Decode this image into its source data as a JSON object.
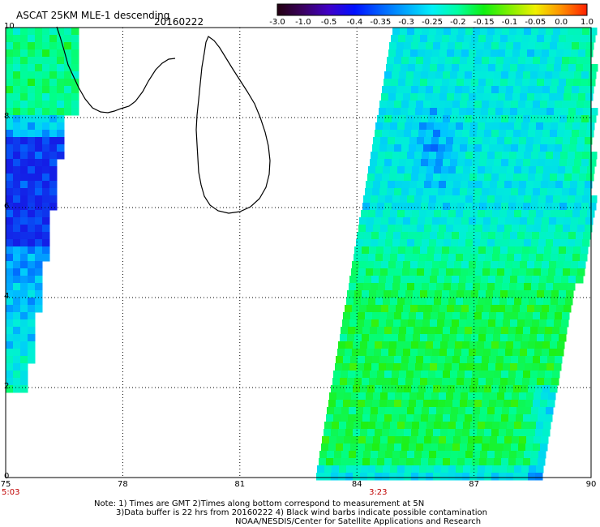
{
  "header": {
    "title": "ASCAT 25KM MLE-1 descending",
    "date": "20160222"
  },
  "colorbar": {
    "labels": [
      "-3.0",
      "-1.0",
      "-0.5",
      "-0.4",
      "-0.35",
      "-0.3",
      "-0.25",
      "-0.2",
      "-0.15",
      "-0.1",
      "-0.05",
      "0.0",
      "1.0"
    ],
    "stops": [
      "#230010",
      "#3a0060",
      "#4000c8",
      "#0010ff",
      "#0060ff",
      "#00a8ff",
      "#00f0f8",
      "#00ffa0",
      "#10f010",
      "#80f000",
      "#f0f000",
      "#ff9000",
      "#ff2000"
    ]
  },
  "map": {
    "lon_labels": [
      "75",
      "78",
      "81",
      "84",
      "87",
      "90"
    ],
    "lat_labels": [
      "0",
      "2",
      "4",
      "6",
      "8",
      "10"
    ],
    "times": [
      {
        "label": "5:03",
        "lon": 75
      },
      {
        "label": "3:23",
        "lon": 84.6
      }
    ],
    "time_color": "#c00000"
  },
  "footer": {
    "line1": "Note: 1) Times are GMT 2)Times along bottom correspond to measurement at 5N",
    "line2": "3)Data buffer is 22 hrs from 20160222 4) Black wind barbs indicate possible contamination",
    "line3": "NOAA/NESDIS/Center for Satellite Applications and Research"
  }
}
